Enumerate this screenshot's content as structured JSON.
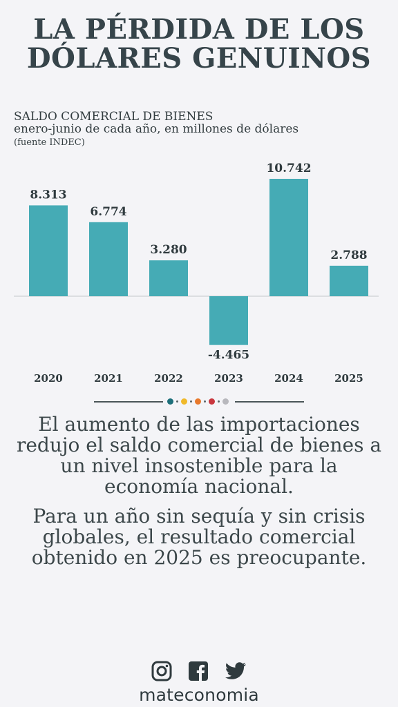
{
  "title": {
    "line1": "LA PÉRDIDA DE LOS",
    "line2": "DÓLARES GENUINOS"
  },
  "chart_data": {
    "type": "bar",
    "title": "SALDO COMERCIAL DE BIENES",
    "subtitle": "enero-junio de cada año, en millones de dólares",
    "source": "(fuente INDEC)",
    "categories": [
      "2020",
      "2021",
      "2022",
      "2023",
      "2024",
      "2025"
    ],
    "values": [
      8313,
      6774,
      3280,
      -4465,
      10742,
      2788
    ],
    "value_labels": [
      "8.313",
      "6.774",
      "3.280",
      "-4.465",
      "10.742",
      "2.788"
    ],
    "bar_color": "#45abb5",
    "grid": false,
    "ylim": [
      -4465,
      10742
    ]
  },
  "divider_colors": [
    "#1d6f7a",
    "#f0b92b",
    "#e8792c",
    "#c9373e",
    "#b8b8bd"
  ],
  "text": {
    "para1": "El aumento de las importaciones redujo el saldo comercial de bienes a un nivel insostenible para la economía nacional.",
    "para2": "Para un año sin sequía y sin crisis globales, el resultado comercial obtenido en 2025 es preocupante."
  },
  "footer": {
    "icons": [
      "instagram-icon",
      "facebook-icon",
      "twitter-icon"
    ],
    "brand": "mateconomia"
  }
}
